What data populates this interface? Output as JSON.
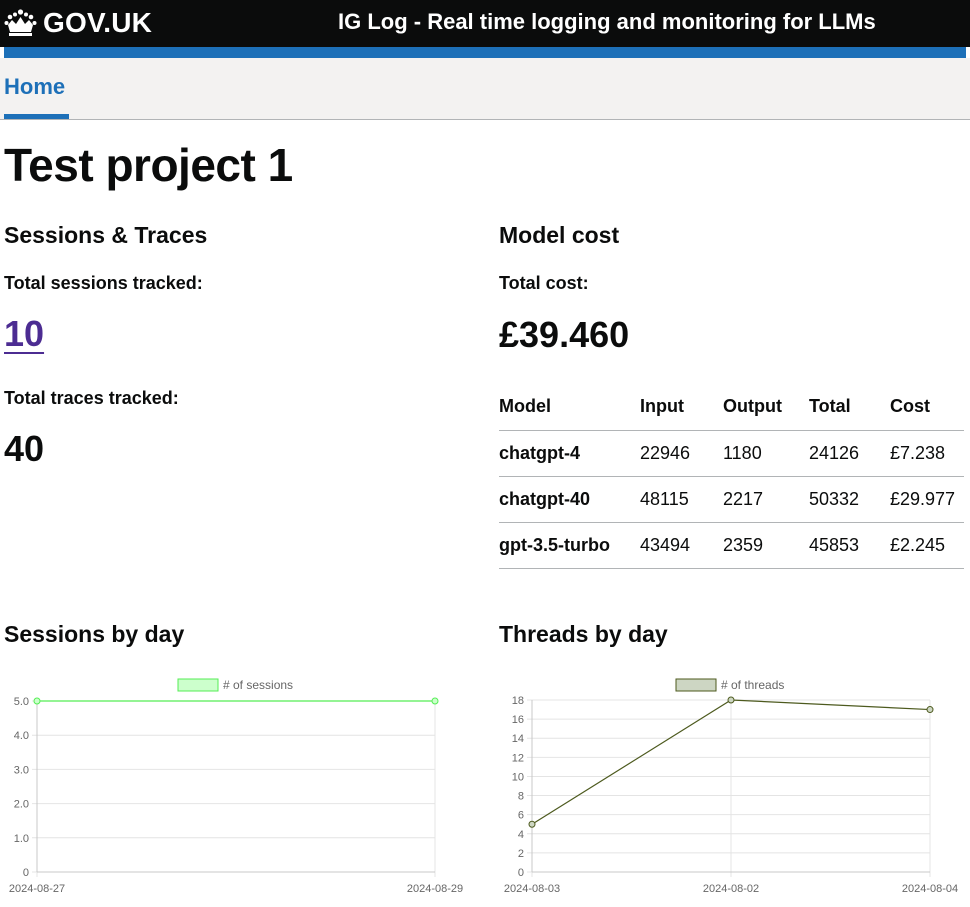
{
  "header": {
    "logo_text": "GOV.UK",
    "service_name": "IG Log - Real time logging and monitoring for LLMs",
    "brand_colors": {
      "header_bg": "#0b0c0c",
      "accent": "#1d70b8"
    }
  },
  "nav": {
    "items": [
      {
        "label": "Home",
        "active": true
      }
    ]
  },
  "page": {
    "title": "Test project 1"
  },
  "sessions_traces": {
    "heading": "Sessions & Traces",
    "sessions_label": "Total sessions tracked:",
    "sessions_value": "10",
    "traces_label": "Total traces tracked:",
    "traces_value": "40"
  },
  "model_cost": {
    "heading": "Model cost",
    "total_label": "Total cost:",
    "total_value": "£39.460",
    "table": {
      "headers": [
        "Model",
        "Input",
        "Output",
        "Total",
        "Cost"
      ],
      "rows": [
        [
          "chatgpt-4",
          "22946",
          "1180",
          "24126",
          "£7.238"
        ],
        [
          "chatgpt-40",
          "48115",
          "2217",
          "50332",
          "£29.977"
        ],
        [
          "gpt-3.5-turbo",
          "43494",
          "2359",
          "45853",
          "£2.245"
        ]
      ]
    }
  },
  "sessions_chart": {
    "heading": "Sessions by day",
    "legend": "# of sessions",
    "color": "#55ee55",
    "fill": "#ccffcc"
  },
  "threads_chart": {
    "heading": "Threads by day",
    "legend": "# of threads",
    "color": "#4d5a1e",
    "fill": "#cdd6c3"
  },
  "chart_data": [
    {
      "type": "line",
      "categories": [
        "2024-08-27",
        "2024-08-29"
      ],
      "series": [
        {
          "name": "# of sessions",
          "values": [
            5,
            5
          ]
        }
      ],
      "ylim": [
        0,
        5
      ],
      "yticks": [
        "0",
        "1.0",
        "2.0",
        "3.0",
        "4.0",
        "5.0"
      ],
      "grid": true,
      "legend": "top"
    },
    {
      "type": "line",
      "categories": [
        "2024-08-03",
        "2024-08-02",
        "2024-08-04"
      ],
      "series": [
        {
          "name": "# of threads",
          "values": [
            5,
            18,
            17
          ]
        }
      ],
      "ylim": [
        0,
        18
      ],
      "yticks": [
        "0",
        "2",
        "4",
        "6",
        "8",
        "10",
        "12",
        "14",
        "16",
        "18"
      ],
      "grid": true,
      "legend": "top"
    }
  ]
}
